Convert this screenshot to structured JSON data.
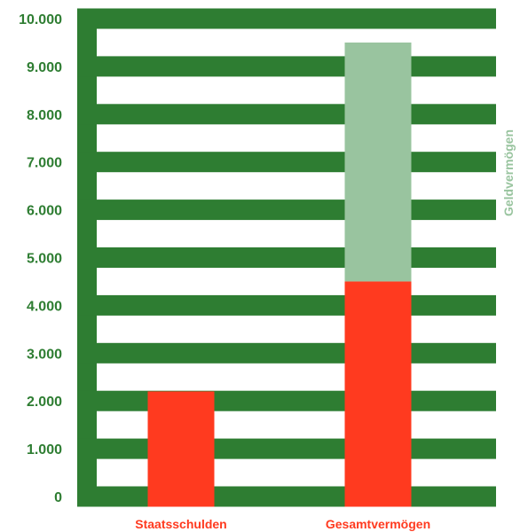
{
  "chart_data": {
    "type": "bar",
    "categories": [
      "Staatsschulden",
      "Gesamtvermögen"
    ],
    "series": [
      {
        "values": [
          2200,
          4500
        ]
      },
      {
        "name": "Geldvermögen",
        "values": [
          0,
          5000
        ]
      }
    ],
    "stacked": true,
    "ylim": [
      0,
      10000
    ],
    "yticks": [
      0,
      1000,
      2000,
      3000,
      4000,
      5000,
      6000,
      7000,
      8000,
      9000,
      10000
    ],
    "ytick_labels": [
      "0",
      "1.000",
      "2.000",
      "3.000",
      "4.000",
      "5.000",
      "6.000",
      "7.000",
      "8.000",
      "9.000",
      "10.000"
    ],
    "xlabel": "",
    "ylabel": "",
    "grid": true,
    "colors": {
      "grid": "#2e7d32",
      "tick_text": "#2e7d32",
      "bar_primary": "#ff3a1f",
      "bar_secondary": "#99c49f",
      "category_text": "#ff3a1f",
      "side_label": "#99c49f"
    }
  }
}
